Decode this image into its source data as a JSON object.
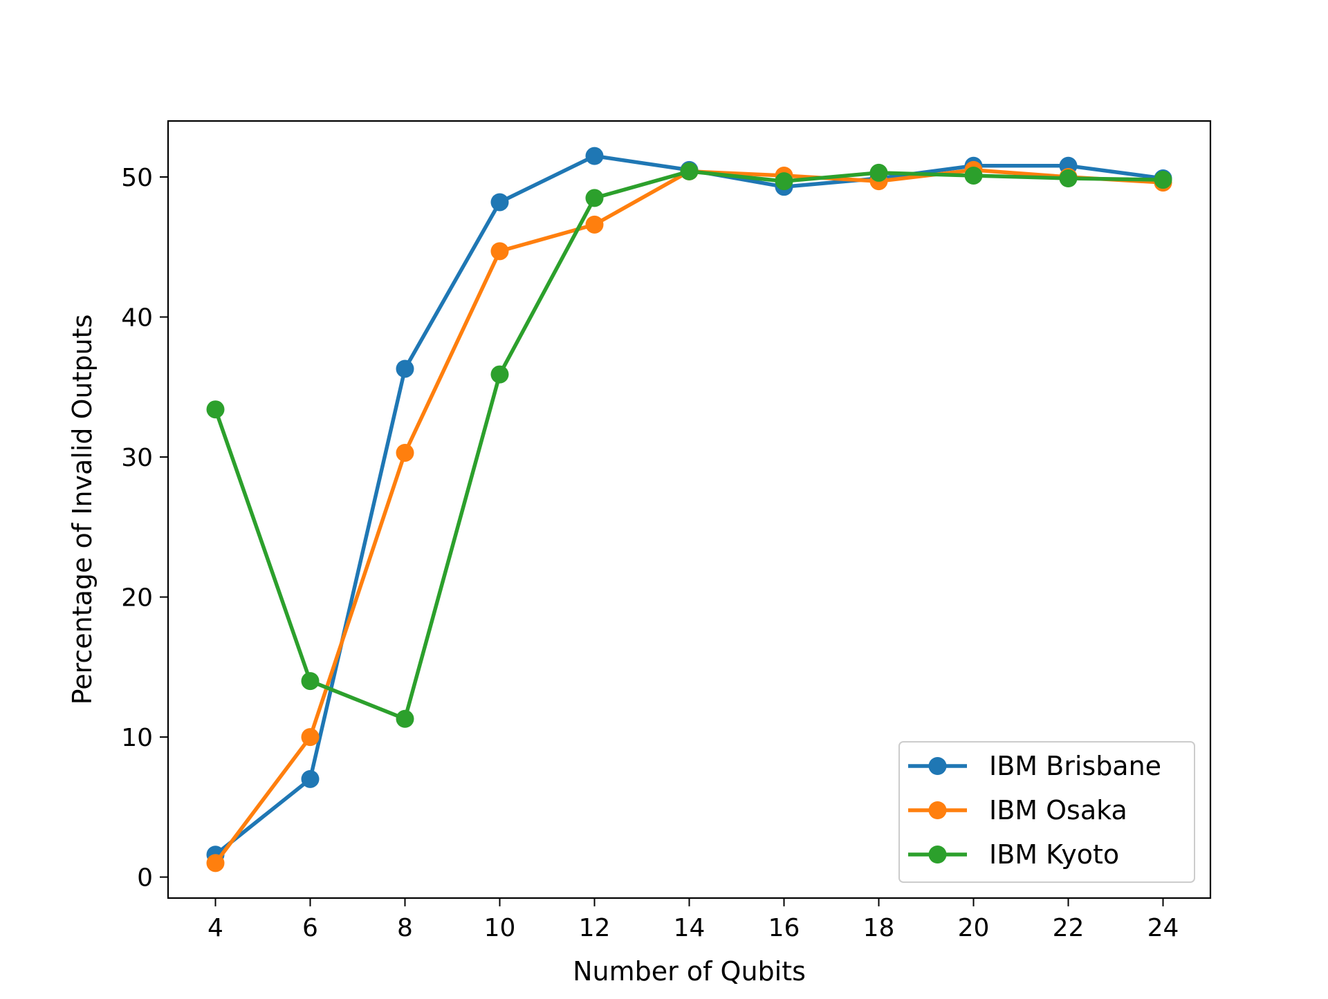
{
  "chart_data": {
    "type": "line",
    "xlabel": "Number of Qubits",
    "ylabel": "Percentage of Invalid Outputs",
    "x": [
      4,
      6,
      8,
      10,
      12,
      14,
      16,
      18,
      20,
      22,
      24
    ],
    "xticks": [
      "4",
      "6",
      "8",
      "10",
      "12",
      "14",
      "16",
      "18",
      "20",
      "22",
      "24"
    ],
    "yticks": [
      "0",
      "10",
      "20",
      "30",
      "40",
      "50"
    ],
    "xlim": [
      3,
      25
    ],
    "ylim": [
      -1.5,
      54
    ],
    "grid": false,
    "legend_position": "lower-right",
    "marker": "circle",
    "series": [
      {
        "name": "IBM Brisbane",
        "color": "#1f77b4",
        "values": [
          1.6,
          7.0,
          36.3,
          48.2,
          51.5,
          50.5,
          49.3,
          49.9,
          50.8,
          50.8,
          49.9
        ]
      },
      {
        "name": "IBM Osaka",
        "color": "#ff7f0e",
        "values": [
          1.0,
          10.0,
          30.3,
          44.7,
          46.6,
          50.4,
          50.1,
          49.7,
          50.5,
          50.0,
          49.6
        ]
      },
      {
        "name": "IBM Kyoto",
        "color": "#2ca02c",
        "values": [
          33.4,
          14.0,
          11.3,
          35.9,
          48.5,
          50.4,
          49.7,
          50.3,
          50.1,
          49.9,
          49.8
        ]
      }
    ]
  }
}
